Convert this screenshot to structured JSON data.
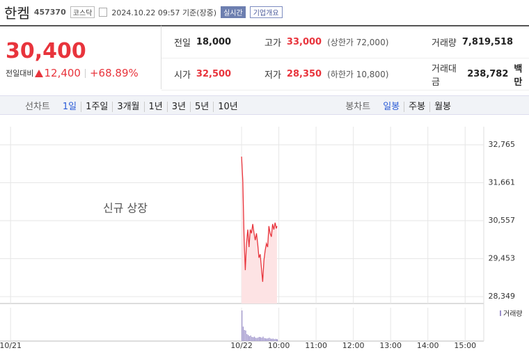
{
  "header": {
    "name": "한켐",
    "code": "457370",
    "market": "코스닥",
    "timestamp": "2024.10.22 09:57 기준(장중)",
    "realtime_button": "실시간",
    "company_button": "기업개요"
  },
  "price": {
    "current": "30,400",
    "change_label": "전일대비",
    "change": "12,400",
    "change_rate": "+68.89%"
  },
  "stats": [
    [
      {
        "label": "전일",
        "value": "18,000"
      },
      {
        "label": "고가",
        "value": "33,000",
        "note": "(상한가 72,000)"
      },
      {
        "label": "거래량",
        "value": "7,819,518"
      }
    ],
    [
      {
        "label": "시가",
        "value": "32,500"
      },
      {
        "label": "저가",
        "value": "28,350",
        "note": "(하한가 10,800)"
      },
      {
        "label": "거래대금",
        "value": "238,782",
        "unit": "백만"
      }
    ]
  ],
  "tabs": {
    "line_label": "선차트",
    "line_periods": [
      "1일",
      "1주일",
      "3개월",
      "1년",
      "3년",
      "5년",
      "10년"
    ],
    "candle_label": "봉차트",
    "candle_periods": [
      "일봉",
      "주봉",
      "월봉"
    ]
  },
  "chart_data": {
    "type": "line",
    "annotation": "신규 상장",
    "color": "#e8343c",
    "area_color": "#fde3e4",
    "x": [
      540,
      542,
      544,
      546,
      548,
      550,
      552,
      554,
      556,
      558,
      560,
      562,
      564,
      566,
      568,
      570,
      572,
      574,
      576,
      578,
      580,
      582,
      584,
      586,
      588,
      590,
      592,
      594,
      596,
      597
    ],
    "values": [
      32420,
      31710,
      30100,
      29120,
      29900,
      30300,
      29790,
      30300,
      30190,
      30460,
      30200,
      29990,
      30190,
      29880,
      29480,
      29580,
      29180,
      28780,
      29400,
      29690,
      29890,
      29790,
      30400,
      30190,
      30090,
      30460,
      30300,
      30500,
      30330,
      30400
    ],
    "volume_label": "거래량",
    "volume_color": "#9a8fc9",
    "volume_values": [
      1100000,
      520000,
      400000,
      380000,
      250000,
      220000,
      180000,
      200000,
      150000,
      140000,
      160000,
      120000,
      110000,
      130000,
      150000,
      140000,
      120000,
      160000,
      110000,
      100000,
      90000,
      100000,
      120000,
      90000,
      80000,
      90000,
      70000,
      80000,
      70000,
      60000
    ],
    "volume_ylim": [
      0,
      1200000
    ],
    "xlim": [
      151,
      930
    ],
    "ylim": [
      28150,
      33290
    ],
    "xticks": [
      {
        "value": 168,
        "label": "10/21"
      },
      {
        "value": 540,
        "label": "10/22"
      },
      {
        "value": 600,
        "label": "10:00"
      },
      {
        "value": 660,
        "label": "11:00"
      },
      {
        "value": 720,
        "label": "12:00"
      },
      {
        "value": 780,
        "label": "13:00"
      },
      {
        "value": 840,
        "label": "14:00"
      },
      {
        "value": 900,
        "label": "15:00"
      }
    ],
    "yticks": [
      {
        "value": 32765,
        "label": "32,765"
      },
      {
        "value": 31661,
        "label": "31,661"
      },
      {
        "value": 30557,
        "label": "30,557"
      },
      {
        "value": 29453,
        "label": "29,453"
      },
      {
        "value": 28349,
        "label": "28,349"
      }
    ],
    "grid": true
  }
}
